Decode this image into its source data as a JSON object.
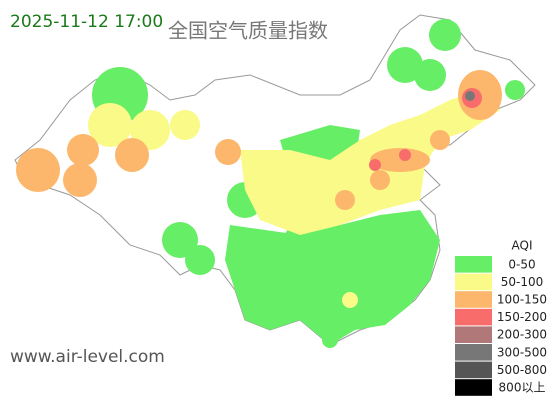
{
  "timestamp": "2025-11-12 17:00",
  "title": "全国空气质量指数",
  "watermark": "www.air-level.com",
  "legend": {
    "title": "AQI",
    "items": [
      {
        "label": "0-50",
        "color": "#66ee66"
      },
      {
        "label": "50-100",
        "color": "#fafa88"
      },
      {
        "label": "100-150",
        "color": "#fcb76c"
      },
      {
        "label": "150-200",
        "color": "#f86c6c"
      },
      {
        "label": "200-300",
        "color": "#b07878"
      },
      {
        "label": "300-500",
        "color": "#777777"
      },
      {
        "label": "500-800",
        "color": "#555555"
      },
      {
        "label": "800以上",
        "color": "#000000"
      }
    ]
  }
}
